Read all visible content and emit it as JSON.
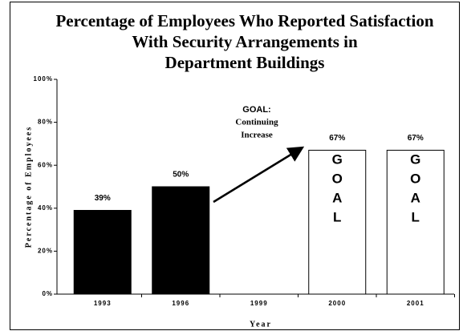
{
  "chart_data": {
    "type": "bar",
    "title": [
      "Percentage of Employees Who Reported Satisfaction",
      "With Security Arrangements in",
      "Department Buildings"
    ],
    "categories": [
      "1993",
      "1996",
      "1999",
      "2000",
      "2001"
    ],
    "values": [
      39,
      50,
      null,
      67,
      67
    ],
    "value_labels": [
      "39%",
      "50%",
      null,
      "67%",
      "67%"
    ],
    "colors": [
      "#000000",
      "#000000",
      null,
      "#ffffff",
      "#ffffff"
    ],
    "bar_labels": [
      null,
      null,
      null,
      "GOAL",
      "GOAL"
    ],
    "annotation": [
      "GOAL:",
      "Continuing",
      "Increase"
    ],
    "ylabel": "Percentage of Employees",
    "xlabel": "Year",
    "ylim": [
      0,
      100
    ],
    "yticks": [
      {
        "value": 0,
        "label": "0%"
      },
      {
        "value": 20,
        "label": "20%"
      },
      {
        "value": 40,
        "label": "40%"
      },
      {
        "value": 60,
        "label": "60%"
      },
      {
        "value": 80,
        "label": "80%"
      },
      {
        "value": 100,
        "label": "100%"
      }
    ],
    "grid": false
  }
}
